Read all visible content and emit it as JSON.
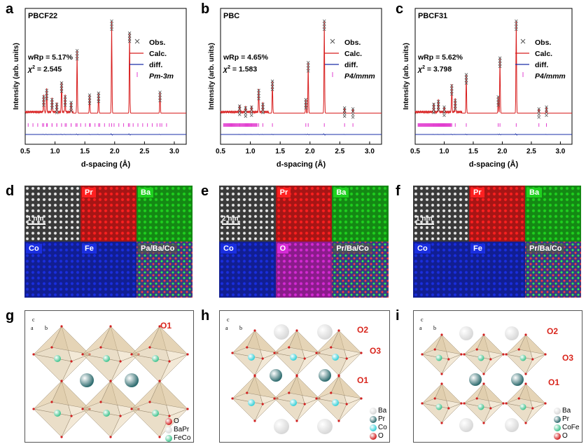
{
  "figure": {
    "panels": [
      "a",
      "b",
      "c",
      "d",
      "e",
      "f",
      "g",
      "h",
      "i"
    ]
  },
  "colors": {
    "obs": "#555555",
    "calc": "#d81e1e",
    "diff": "#1a2fa8",
    "bragg": "#e23fd0",
    "pr": "#ff2020",
    "ba": "#1fd11f",
    "co": "#1a2ee0",
    "fe": "#1a2ee0",
    "o": "#d52ad5",
    "site_label": "#d9251c",
    "ba_ball": "#d8d8d8",
    "pr_ball": "#2d6b6e",
    "co_ball": "#33d0d8",
    "feco_ball": "#3fc38e",
    "o_ball": "#d12020"
  },
  "chart_data": [
    {
      "type": "line",
      "panel": "a",
      "title": "PBCF22",
      "xlabel": "d-spacing (Å)",
      "ylabel": "Intensity (arb. units)",
      "xlim": [
        0.5,
        3.2
      ],
      "xticks": [
        "0.5",
        "1.0",
        "1.5",
        "2.0",
        "2.5",
        "3.0"
      ],
      "stats": {
        "wrp": "wRp = 5.17%",
        "chi2_label": "χ",
        "chi2_value": "= 2.545"
      },
      "legend": [
        "Obs.",
        "Calc.",
        "diff.",
        "Pm-3m"
      ],
      "peaks": [
        {
          "x": 0.81,
          "y": 0.18
        },
        {
          "x": 0.86,
          "y": 0.25
        },
        {
          "x": 0.95,
          "y": 0.15
        },
        {
          "x": 1.03,
          "y": 0.1
        },
        {
          "x": 1.11,
          "y": 0.33
        },
        {
          "x": 1.17,
          "y": 0.18
        },
        {
          "x": 1.27,
          "y": 0.12
        },
        {
          "x": 1.37,
          "y": 0.68
        },
        {
          "x": 1.58,
          "y": 0.2
        },
        {
          "x": 1.73,
          "y": 0.22
        },
        {
          "x": 1.95,
          "y": 1.0
        },
        {
          "x": 2.25,
          "y": 0.87
        },
        {
          "x": 2.76,
          "y": 0.23
        }
      ]
    },
    {
      "type": "line",
      "panel": "b",
      "title": "PBC",
      "xlabel": "d-spacing (Å)",
      "ylabel": "Intensity (arb. units)",
      "xlim": [
        0.5,
        3.2
      ],
      "xticks": [
        "0.5",
        "1.0",
        "1.5",
        "2.0",
        "2.5",
        "3.0"
      ],
      "stats": {
        "wrp": "wRp = 4.65%",
        "chi2_label": "χ",
        "chi2_value": "= 1.583"
      },
      "legend": [
        "Obs.",
        "Calc.",
        "diff.",
        "P4/mmm"
      ],
      "peaks": [
        {
          "x": 0.82,
          "y": 0.08
        },
        {
          "x": 0.92,
          "y": 0.06
        },
        {
          "x": 1.02,
          "y": 0.07
        },
        {
          "x": 1.14,
          "y": 0.25
        },
        {
          "x": 1.21,
          "y": 0.1
        },
        {
          "x": 1.37,
          "y": 0.35
        },
        {
          "x": 1.93,
          "y": 0.15
        },
        {
          "x": 1.97,
          "y": 0.55
        },
        {
          "x": 2.24,
          "y": 1.0
        },
        {
          "x": 2.58,
          "y": 0.06
        },
        {
          "x": 2.72,
          "y": 0.05
        }
      ]
    },
    {
      "type": "line",
      "panel": "c",
      "title": "PBCF31",
      "xlabel": "d-spacing (Å)",
      "ylabel": "Intensity (arb. units)",
      "xlim": [
        0.5,
        3.2
      ],
      "xticks": [
        "0.5",
        "1.0",
        "1.5",
        "2.0",
        "2.5",
        "3.0"
      ],
      "stats": {
        "wrp": "wRp = 5.62%",
        "chi2_label": "χ",
        "chi2_value": "= 3.798"
      },
      "legend": [
        "Obs.",
        "Calc.",
        "diff.",
        "P4/mmm"
      ],
      "peaks": [
        {
          "x": 0.82,
          "y": 0.1
        },
        {
          "x": 0.9,
          "y": 0.13
        },
        {
          "x": 1.0,
          "y": 0.07
        },
        {
          "x": 1.13,
          "y": 0.3
        },
        {
          "x": 1.19,
          "y": 0.14
        },
        {
          "x": 1.38,
          "y": 0.42
        },
        {
          "x": 1.93,
          "y": 0.18
        },
        {
          "x": 1.96,
          "y": 0.6
        },
        {
          "x": 2.24,
          "y": 1.0
        },
        {
          "x": 2.63,
          "y": 0.05
        },
        {
          "x": 2.76,
          "y": 0.07
        }
      ]
    }
  ],
  "maps": {
    "d": {
      "tiles": [
        "",
        "Pr",
        "Ba",
        "Co",
        "Fe",
        "Pa/Ba/Co"
      ],
      "scalebar": "1 nm"
    },
    "e": {
      "tiles": [
        "",
        "Pr",
        "Ba",
        "Co",
        "O",
        "Pr/Ba/Co"
      ],
      "scalebar": "2 nm"
    },
    "f": {
      "tiles": [
        "",
        "Pr",
        "Ba",
        "Co",
        "Fe",
        "Pr/Ba/Co"
      ],
      "scalebar": "1 nm"
    }
  },
  "structures": {
    "g": {
      "axes": {
        "c": "c",
        "a": "a",
        "b": "b"
      },
      "sites": [
        "O1"
      ],
      "legend": [
        "O",
        "BaPr",
        "FeCo"
      ]
    },
    "h": {
      "axes": {
        "c": "c",
        "a": "a",
        "b": "b"
      },
      "sites": [
        "O2",
        "O3",
        "O1"
      ],
      "legend": [
        "Ba",
        "Pr",
        "Co",
        "O"
      ]
    },
    "i": {
      "axes": {
        "c": "c",
        "a": "a",
        "b": "b"
      },
      "sites": [
        "O2",
        "O3",
        "O1"
      ],
      "legend": [
        "Ba",
        "Pr",
        "CoFe",
        "O"
      ]
    }
  }
}
